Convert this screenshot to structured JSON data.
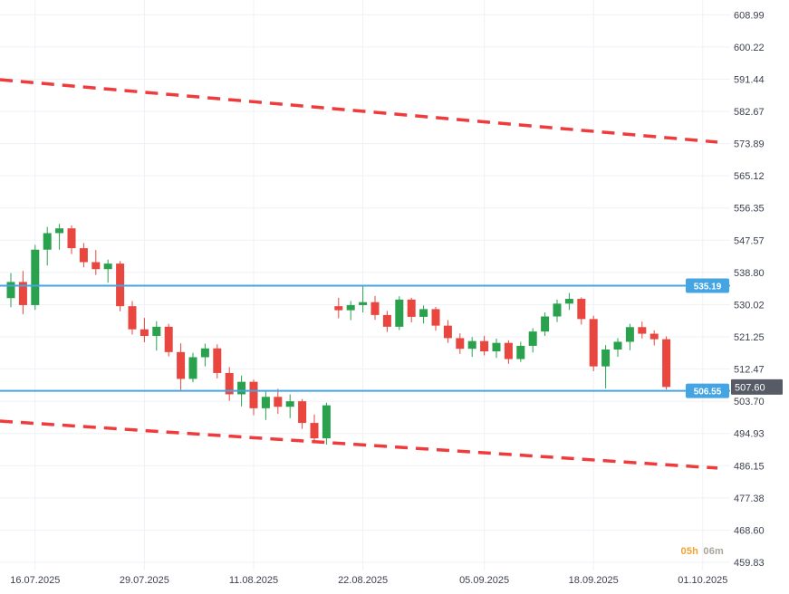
{
  "chart_data": {
    "type": "candlestick",
    "grid": true,
    "ylim": [
      459.83,
      608.99
    ],
    "y_axis_labels": [
      "608.99",
      "600.22",
      "591.44",
      "582.67",
      "573.89",
      "565.12",
      "556.35",
      "547.57",
      "538.80",
      "530.02",
      "521.25",
      "512.47",
      "503.70",
      "494.93",
      "486.15",
      "477.38",
      "468.60",
      "459.83"
    ],
    "x_axis_ticks": [
      {
        "label": "16.07.2025",
        "index": 2
      },
      {
        "label": "29.07.2025",
        "index": 11
      },
      {
        "label": "11.08.2025",
        "index": 20
      },
      {
        "label": "22.08.2025",
        "index": 29
      },
      {
        "label": "05.09.2025",
        "index": 39
      },
      {
        "label": "18.09.2025",
        "index": 48
      },
      {
        "label": "01.10.2025",
        "index": 57
      }
    ],
    "candles": [
      {
        "t": "14.07.2025",
        "o": 531.8,
        "h": 538.6,
        "l": 529.3,
        "c": 536.2
      },
      {
        "t": "15.07.2025",
        "o": 536.2,
        "h": 539.2,
        "l": 527.4,
        "c": 529.9
      },
      {
        "t": "16.07.2025",
        "o": 529.9,
        "h": 546.3,
        "l": 528.6,
        "c": 545.0
      },
      {
        "t": "17.07.2025",
        "o": 545.0,
        "h": 551.2,
        "l": 540.7,
        "c": 549.5
      },
      {
        "t": "18.07.2025",
        "o": 549.5,
        "h": 552.0,
        "l": 545.0,
        "c": 550.8
      },
      {
        "t": "21.07.2025",
        "o": 550.8,
        "h": 551.6,
        "l": 543.8,
        "c": 545.4
      },
      {
        "t": "22.07.2025",
        "o": 545.4,
        "h": 546.8,
        "l": 540.2,
        "c": 541.6
      },
      {
        "t": "23.07.2025",
        "o": 541.6,
        "h": 544.9,
        "l": 538.1,
        "c": 539.7
      },
      {
        "t": "24.07.2025",
        "o": 539.7,
        "h": 542.3,
        "l": 536.0,
        "c": 541.2
      },
      {
        "t": "25.07.2025",
        "o": 541.2,
        "h": 541.9,
        "l": 528.2,
        "c": 529.6
      },
      {
        "t": "28.07.2025",
        "o": 529.6,
        "h": 531.0,
        "l": 521.9,
        "c": 523.3
      },
      {
        "t": "29.07.2025",
        "o": 523.3,
        "h": 526.4,
        "l": 519.8,
        "c": 521.5
      },
      {
        "t": "30.07.2025",
        "o": 521.5,
        "h": 525.5,
        "l": 517.5,
        "c": 524.0
      },
      {
        "t": "31.07.2025",
        "o": 524.0,
        "h": 524.8,
        "l": 515.9,
        "c": 517.1
      },
      {
        "t": "01.08.2025",
        "o": 517.1,
        "h": 519.5,
        "l": 506.8,
        "c": 509.8
      },
      {
        "t": "04.08.2025",
        "o": 509.8,
        "h": 516.9,
        "l": 508.9,
        "c": 515.7
      },
      {
        "t": "05.08.2025",
        "o": 515.7,
        "h": 519.4,
        "l": 513.2,
        "c": 518.1
      },
      {
        "t": "06.08.2025",
        "o": 518.1,
        "h": 519.2,
        "l": 509.9,
        "c": 511.4
      },
      {
        "t": "07.08.2025",
        "o": 511.4,
        "h": 513.0,
        "l": 503.8,
        "c": 505.6
      },
      {
        "t": "08.08.2025",
        "o": 505.6,
        "h": 510.7,
        "l": 502.3,
        "c": 509.0
      },
      {
        "t": "11.08.2025",
        "o": 509.0,
        "h": 509.6,
        "l": 499.9,
        "c": 501.8
      },
      {
        "t": "12.08.2025",
        "o": 501.8,
        "h": 506.4,
        "l": 498.6,
        "c": 504.9
      },
      {
        "t": "13.08.2025",
        "o": 504.9,
        "h": 507.1,
        "l": 500.3,
        "c": 502.2
      },
      {
        "t": "14.08.2025",
        "o": 502.2,
        "h": 505.6,
        "l": 499.1,
        "c": 503.7
      },
      {
        "t": "15.08.2025",
        "o": 503.7,
        "h": 504.3,
        "l": 496.2,
        "c": 497.8
      },
      {
        "t": "18.08.2025",
        "o": 497.8,
        "h": 500.1,
        "l": 492.2,
        "c": 493.6
      },
      {
        "t": "19.08.2025",
        "o": 493.6,
        "h": 503.3,
        "l": 491.9,
        "c": 502.6
      },
      {
        "t": "20.08.2025",
        "o": 529.6,
        "h": 531.9,
        "l": 526.3,
        "c": 528.5
      },
      {
        "t": "21.08.2025",
        "o": 528.5,
        "h": 531.0,
        "l": 525.8,
        "c": 529.9
      },
      {
        "t": "22.08.2025",
        "o": 529.9,
        "h": 535.2,
        "l": 527.9,
        "c": 530.7
      },
      {
        "t": "25.08.2025",
        "o": 530.7,
        "h": 532.4,
        "l": 525.9,
        "c": 527.2
      },
      {
        "t": "26.08.2025",
        "o": 527.2,
        "h": 528.3,
        "l": 522.6,
        "c": 524.0
      },
      {
        "t": "27.08.2025",
        "o": 524.0,
        "h": 532.3,
        "l": 523.1,
        "c": 531.4
      },
      {
        "t": "28.08.2025",
        "o": 531.4,
        "h": 531.9,
        "l": 525.2,
        "c": 526.7
      },
      {
        "t": "29.08.2025",
        "o": 526.7,
        "h": 529.8,
        "l": 524.9,
        "c": 528.8
      },
      {
        "t": "01.09.2025",
        "o": 528.8,
        "h": 529.4,
        "l": 522.9,
        "c": 524.3
      },
      {
        "t": "02.09.2025",
        "o": 524.3,
        "h": 525.8,
        "l": 519.6,
        "c": 520.9
      },
      {
        "t": "03.09.2025",
        "o": 520.9,
        "h": 522.2,
        "l": 516.6,
        "c": 518.0
      },
      {
        "t": "04.09.2025",
        "o": 518.0,
        "h": 521.2,
        "l": 515.8,
        "c": 520.1
      },
      {
        "t": "05.09.2025",
        "o": 520.1,
        "h": 521.5,
        "l": 516.2,
        "c": 517.3
      },
      {
        "t": "08.09.2025",
        "o": 517.3,
        "h": 520.8,
        "l": 515.5,
        "c": 519.6
      },
      {
        "t": "09.09.2025",
        "o": 519.6,
        "h": 520.3,
        "l": 513.9,
        "c": 515.2
      },
      {
        "t": "10.09.2025",
        "o": 515.2,
        "h": 519.9,
        "l": 514.4,
        "c": 518.8
      },
      {
        "t": "11.09.2025",
        "o": 518.8,
        "h": 523.6,
        "l": 517.0,
        "c": 522.7
      },
      {
        "t": "12.09.2025",
        "o": 522.7,
        "h": 527.9,
        "l": 521.5,
        "c": 526.8
      },
      {
        "t": "15.09.2025",
        "o": 526.8,
        "h": 531.4,
        "l": 525.3,
        "c": 530.3
      },
      {
        "t": "16.09.2025",
        "o": 530.3,
        "h": 533.2,
        "l": 528.6,
        "c": 531.6
      },
      {
        "t": "17.09.2025",
        "o": 531.6,
        "h": 532.0,
        "l": 524.6,
        "c": 526.1
      },
      {
        "t": "18.09.2025",
        "o": 526.1,
        "h": 527.0,
        "l": 511.9,
        "c": 513.2
      },
      {
        "t": "19.09.2025",
        "o": 513.2,
        "h": 519.0,
        "l": 507.2,
        "c": 517.8
      },
      {
        "t": "22.09.2025",
        "o": 517.8,
        "h": 520.9,
        "l": 515.8,
        "c": 519.9
      },
      {
        "t": "23.09.2025",
        "o": 519.9,
        "h": 524.8,
        "l": 517.6,
        "c": 523.9
      },
      {
        "t": "24.09.2025",
        "o": 523.9,
        "h": 525.4,
        "l": 520.8,
        "c": 522.1
      },
      {
        "t": "25.09.2025",
        "o": 522.1,
        "h": 523.0,
        "l": 518.9,
        "c": 520.6
      },
      {
        "t": "26.09.2025",
        "o": 520.6,
        "h": 521.4,
        "l": 506.9,
        "c": 507.6
      }
    ],
    "levels": [
      {
        "value": 535.19,
        "label": "535.19"
      },
      {
        "value": 506.55,
        "label": "506.55"
      }
    ],
    "trendlines": [
      {
        "name": "upper",
        "x1": 0,
        "p1": 591.3,
        "x2": 792,
        "p2": 574.3
      },
      {
        "name": "lower",
        "x1": 0,
        "p1": 498.3,
        "x2": 792,
        "p2": 485.5
      }
    ],
    "last_price": {
      "value": 507.6,
      "label": "507.60"
    },
    "countdown": {
      "hours": "05h",
      "minutes": "06m"
    }
  },
  "colors": {
    "up": "#2aa14d",
    "down": "#e8463f",
    "level_blue": "#44a5e2",
    "trend_red": "#ef3b3b",
    "last_price_bg": "#565b66",
    "grid": "#eef1f6",
    "axis_text": "#3c4150",
    "countdown_hours": "#f2a130",
    "countdown_minutes": "#a9a49c"
  }
}
